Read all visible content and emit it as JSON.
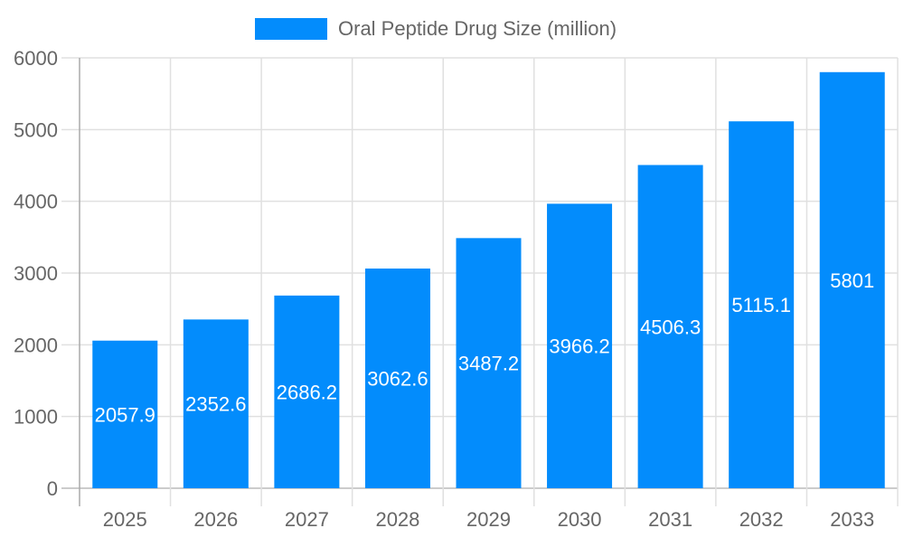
{
  "chart_data": {
    "type": "bar",
    "title": "",
    "xlabel": "",
    "ylabel": "",
    "categories": [
      "2025",
      "2026",
      "2027",
      "2028",
      "2029",
      "2030",
      "2031",
      "2032",
      "2033"
    ],
    "series": [
      {
        "name": "Oral Peptide Drug Size (million)",
        "values": [
          2057.9,
          2352.6,
          2686.2,
          3062.6,
          3487.2,
          3966.2,
          4506.3,
          5115.1,
          5801
        ],
        "color": "#038cfc"
      }
    ],
    "ylim": [
      0,
      6000
    ],
    "yticks": [
      0,
      1000,
      2000,
      3000,
      4000,
      5000,
      6000
    ],
    "grid": true,
    "legend": "top-center",
    "data_labels": true
  }
}
